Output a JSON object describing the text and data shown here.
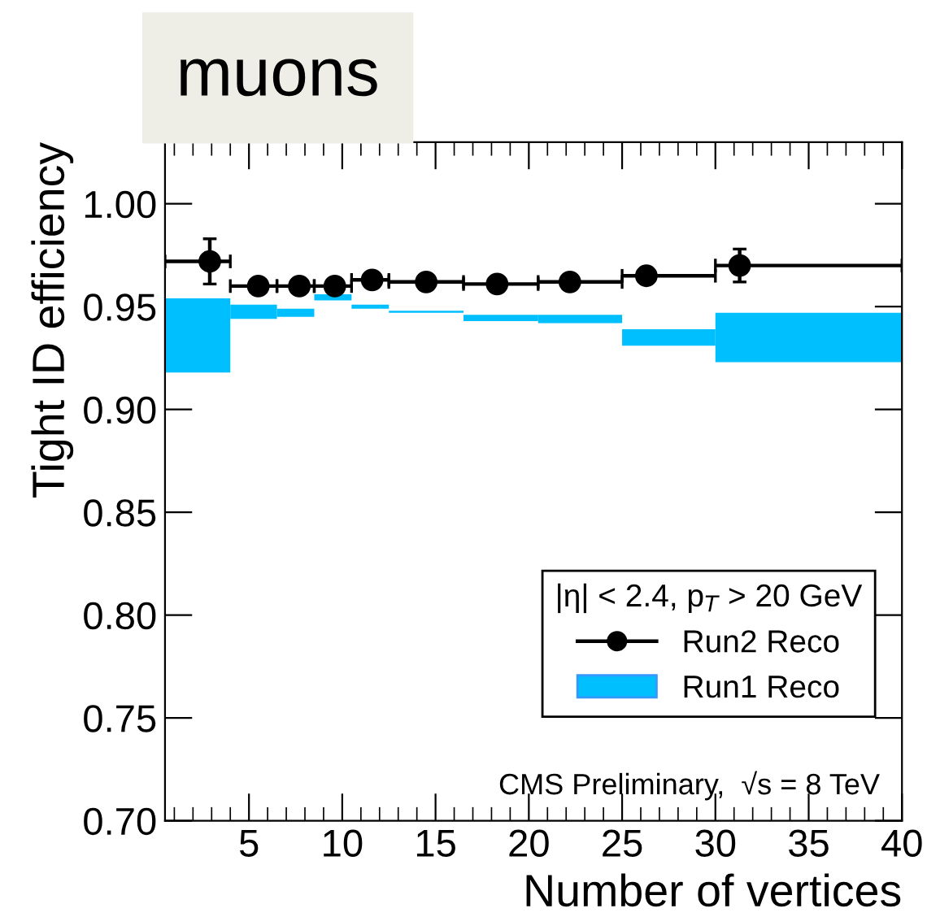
{
  "chart_data": {
    "type": "scatter",
    "title": "muons",
    "xlabel": "Number of vertices",
    "ylabel": "Tight ID efficiency",
    "legend_title": "|η| < 2.4, p$_{T}$ > 20 GeV",
    "annotations": [
      "CMS Preliminary,  √s = 8 TeV"
    ],
    "series": [
      {
        "name": "Run2 Reco",
        "color": "#000000",
        "x": [
          2.9,
          5.5,
          7.7,
          9.6,
          11.6,
          14.5,
          18.3,
          22.2,
          26.3,
          31.3
        ],
        "values": [
          0.972,
          0.96,
          0.96,
          0.96,
          0.963,
          0.962,
          0.961,
          0.962,
          0.965,
          0.97
        ],
        "errors": [
          0.011,
          null,
          null,
          null,
          null,
          null,
          null,
          null,
          null,
          0.008
        ],
        "xerrors": [
          [
            0.5,
            4
          ],
          [
            4,
            6.5
          ],
          [
            6.5,
            8.5
          ],
          [
            8.5,
            10.5
          ],
          [
            10.5,
            12.5
          ],
          [
            12.5,
            16.5
          ],
          [
            16.5,
            20.5
          ],
          [
            20.5,
            25
          ],
          [
            25,
            30
          ],
          [
            30,
            40
          ]
        ]
      },
      {
        "name": "Run1 Reco",
        "type": "bar",
        "color": "#00bfff",
        "x": [
          2.25,
          5.25,
          7.5,
          9.5,
          11.5,
          14.5,
          18.5,
          22.75,
          27.5,
          35
        ],
        "base": [
          0.918,
          0.944,
          0.945,
          0.953,
          0.949,
          0.947,
          0.943,
          0.942,
          0.931,
          0.923
        ],
        "values": [
          0.036,
          0.007,
          0.004,
          0.003,
          0.002,
          0.001,
          0.003,
          0.004,
          0.008,
          0.024
        ]
      }
    ],
    "xlim": [
      0.5,
      40
    ],
    "xticks": [
      {
        "value": 1,
        "label": null
      },
      {
        "value": 2,
        "label": null
      },
      {
        "value": 3,
        "label": null
      },
      {
        "value": 4,
        "label": null
      },
      5,
      {
        "value": 6,
        "label": null
      },
      {
        "value": 7,
        "label": null
      },
      {
        "value": 8,
        "label": null
      },
      {
        "value": 9,
        "label": null
      },
      10,
      {
        "value": 11,
        "label": null
      },
      {
        "value": 12,
        "label": null
      },
      {
        "value": 13,
        "label": null
      },
      {
        "value": 14,
        "label": null
      },
      15,
      {
        "value": 16,
        "label": null
      },
      {
        "value": 17,
        "label": null
      },
      {
        "value": 18,
        "label": null
      },
      {
        "value": 19,
        "label": null
      },
      20,
      {
        "value": 21,
        "label": null
      },
      {
        "value": 22,
        "label": null
      },
      {
        "value": 23,
        "label": null
      },
      {
        "value": 24,
        "label": null
      },
      25,
      {
        "value": 26,
        "label": null
      },
      {
        "value": 27,
        "label": null
      },
      {
        "value": 28,
        "label": null
      },
      {
        "value": 29,
        "label": null
      },
      30,
      {
        "value": 31,
        "label": null
      },
      {
        "value": 32,
        "label": null
      },
      {
        "value": 33,
        "label": null
      },
      {
        "value": 34,
        "label": null
      },
      35,
      {
        "value": 36,
        "label": null
      },
      {
        "value": 37,
        "label": null
      },
      {
        "value": 38,
        "label": null
      },
      {
        "value": 39,
        "label": null
      },
      40
    ],
    "ylim": [
      0.7,
      1.03
    ],
    "yticks": [
      {
        "value": 0.7,
        "label": "0.70"
      },
      {
        "value": 0.75,
        "label": "0.75"
      },
      {
        "value": 0.8,
        "label": "0.80"
      },
      {
        "value": 0.85,
        "label": "0.85"
      },
      {
        "value": 0.9,
        "label": "0.90"
      },
      {
        "value": 0.95,
        "label": "0.95"
      },
      {
        "value": 1.0,
        "label": "1.00"
      }
    ],
    "marker": "circle",
    "legend": "bottom right",
    "grid": false
  }
}
